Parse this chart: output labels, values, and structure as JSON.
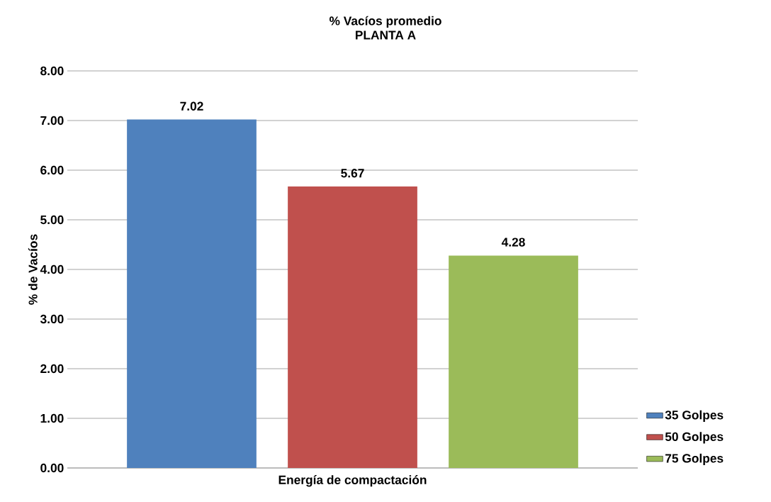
{
  "chart_data": {
    "type": "bar",
    "title": "% Vacíos promedio",
    "subtitle": "PLANTA A",
    "xlabel": "Energía de compactación",
    "ylabel": "% de Vacíos",
    "categories": [
      null
    ],
    "series": [
      {
        "name": "35 Golpes",
        "color": "#4f81bd",
        "values": [
          7.02
        ]
      },
      {
        "name": "50 Golpes",
        "color": "#c0504d",
        "values": [
          5.67
        ]
      },
      {
        "name": "75 Golpes",
        "color": "#9bbb59",
        "values": [
          4.28
        ]
      }
    ],
    "ylim": [
      0,
      8
    ],
    "yticks": [
      {
        "value": 0,
        "label": "0.00"
      },
      {
        "value": 1,
        "label": "1.00"
      },
      {
        "value": 2,
        "label": "2.00"
      },
      {
        "value": 3,
        "label": "3.00"
      },
      {
        "value": 4,
        "label": "4.00"
      },
      {
        "value": 5,
        "label": "5.00"
      },
      {
        "value": 6,
        "label": "6.00"
      },
      {
        "value": 7,
        "label": "7.00"
      },
      {
        "value": 8,
        "label": "8.00"
      }
    ],
    "grid": "y",
    "legend": "right",
    "data_labels": true
  }
}
